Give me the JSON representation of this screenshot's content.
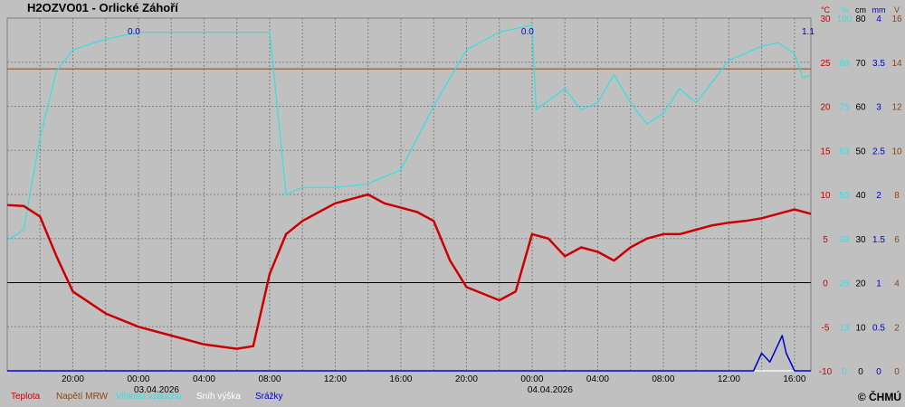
{
  "title": "H2OZVO01 - Orlické Záhoří",
  "copyright": "© ČHMÚ",
  "colors": {
    "background": "#c0c0c0",
    "temperature": "#cc0000",
    "voltage": "#8b4513",
    "humidity": "#33e0e0",
    "snow": "#ffffff",
    "precip": "#0000cc",
    "grid": "#808080",
    "zero": "#000000"
  },
  "legend": [
    {
      "label": "Teplota",
      "color": "#cc0000"
    },
    {
      "label": "Napětí MRW",
      "color": "#8b4513"
    },
    {
      "label": "Vlhkost vzduchu",
      "color": "#33e0e0"
    },
    {
      "label": "Sníh výška",
      "color": "#ffffff"
    },
    {
      "label": "Srážky",
      "color": "#0000cc"
    }
  ],
  "axes": {
    "units": [
      "°C",
      "%",
      "cm",
      "mm",
      "V"
    ],
    "temperature_ticks": [
      "30",
      "25",
      "20",
      "15",
      "10",
      "5",
      "0",
      "-5",
      "-10"
    ],
    "humidity_ticks": [
      "100",
      "88",
      "75",
      "63",
      "50",
      "38",
      "25",
      "13",
      "0"
    ],
    "snow_ticks": [
      "80",
      "70",
      "60",
      "50",
      "40",
      "30",
      "20",
      "10",
      "0"
    ],
    "precip_ticks": [
      "4",
      "3.5",
      "3",
      "2.5",
      "2",
      "1.5",
      "1",
      "0.5",
      "0"
    ],
    "voltage_ticks": [
      "16",
      "14",
      "12",
      "10",
      "8",
      "6",
      "4",
      "2",
      "0"
    ]
  },
  "x_ticks": [
    "20:00",
    "00:00",
    "04:00",
    "08:00",
    "12:00",
    "16:00",
    "20:00",
    "00:00",
    "04:00",
    "08:00",
    "12:00",
    "16:00"
  ],
  "date_labels": [
    "03.04.2026",
    "04.04.2026"
  ],
  "precip_totals": [
    "0.0",
    "0.0",
    "1.1"
  ],
  "chart_data": {
    "type": "line",
    "x_range": [
      "2026-04-02 16:00",
      "2026-04-04 17:00"
    ],
    "y_axes": {
      "temperature_c": [
        -10,
        30
      ],
      "humidity_pct": [
        0,
        100
      ],
      "snow_cm": [
        0,
        80
      ],
      "precip_mm": [
        0,
        4
      ],
      "voltage_v": [
        0,
        16
      ]
    },
    "grid": true,
    "series": [
      {
        "name": "Teplota",
        "unit": "°C",
        "color": "#cc0000",
        "x": [
          "2026-04-02 16:00",
          "2026-04-02 17:00",
          "2026-04-02 18:00",
          "2026-04-02 19:00",
          "2026-04-02 20:00",
          "2026-04-02 22:00",
          "2026-04-03 00:00",
          "2026-04-03 02:00",
          "2026-04-03 04:00",
          "2026-04-03 06:00",
          "2026-04-03 07:00",
          "2026-04-03 08:00",
          "2026-04-03 09:00",
          "2026-04-03 10:00",
          "2026-04-03 11:00",
          "2026-04-03 12:00",
          "2026-04-03 13:00",
          "2026-04-03 14:00",
          "2026-04-03 15:00",
          "2026-04-03 16:00",
          "2026-04-03 17:00",
          "2026-04-03 18:00",
          "2026-04-03 19:00",
          "2026-04-03 20:00",
          "2026-04-03 22:00",
          "2026-04-03 23:00",
          "2026-04-04 00:00",
          "2026-04-04 01:00",
          "2026-04-04 02:00",
          "2026-04-04 03:00",
          "2026-04-04 04:00",
          "2026-04-04 05:00",
          "2026-04-04 06:00",
          "2026-04-04 07:00",
          "2026-04-04 08:00",
          "2026-04-04 09:00",
          "2026-04-04 10:00",
          "2026-04-04 11:00",
          "2026-04-04 12:00",
          "2026-04-04 13:00",
          "2026-04-04 14:00",
          "2026-04-04 15:00",
          "2026-04-04 16:00",
          "2026-04-04 17:00"
        ],
        "y": [
          8.8,
          8.7,
          7.5,
          3.0,
          -1.0,
          -3.5,
          -5.0,
          -6.0,
          -7.0,
          -7.5,
          -7.2,
          1.0,
          5.5,
          7.0,
          8.0,
          9.0,
          9.5,
          10.0,
          9.0,
          8.5,
          8.0,
          7.0,
          2.5,
          -0.5,
          -2.0,
          -1.0,
          5.5,
          5.0,
          3.0,
          4.0,
          3.5,
          2.5,
          4.0,
          5.0,
          5.5,
          5.5,
          6.0,
          6.5,
          6.8,
          7.0,
          7.3,
          7.8,
          8.3,
          7.8
        ]
      },
      {
        "name": "Napětí MRW",
        "unit": "V",
        "color": "#8b4513",
        "x": [
          "2026-04-02 16:00",
          "2026-04-04 17:00"
        ],
        "y": [
          13.7,
          13.7
        ]
      },
      {
        "name": "Vlhkost vzduchu",
        "unit": "%",
        "color": "#33e0e0",
        "x": [
          "2026-04-02 16:00",
          "2026-04-02 17:00",
          "2026-04-02 18:00",
          "2026-04-02 19:00",
          "2026-04-02 20:00",
          "2026-04-02 22:00",
          "2026-04-03 00:00",
          "2026-04-03 04:00",
          "2026-04-03 08:00",
          "2026-04-03 09:00",
          "2026-04-03 10:00",
          "2026-04-03 12:00",
          "2026-04-03 14:00",
          "2026-04-03 16:00",
          "2026-04-03 18:00",
          "2026-04-03 20:00",
          "2026-04-03 22:00",
          "2026-04-04 00:00",
          "2026-04-04 00:15",
          "2026-04-04 02:00",
          "2026-04-04 03:00",
          "2026-04-04 04:00",
          "2026-04-04 05:00",
          "2026-04-04 06:00",
          "2026-04-04 07:00",
          "2026-04-04 08:00",
          "2026-04-04 09:00",
          "2026-04-04 10:00",
          "2026-04-04 11:00",
          "2026-04-04 12:00",
          "2026-04-04 14:00",
          "2026-04-04 15:00",
          "2026-04-04 16:00",
          "2026-04-04 16:30",
          "2026-04-04 17:00"
        ],
        "y": [
          37,
          40,
          66,
          85,
          91,
          94,
          96,
          96,
          96,
          50,
          52,
          52,
          53,
          57,
          75,
          91,
          96,
          98,
          74,
          80,
          74,
          76,
          84,
          76,
          70,
          73,
          80,
          76,
          82,
          88,
          92,
          93,
          90,
          83,
          84
        ]
      },
      {
        "name": "Sníh výška",
        "unit": "cm",
        "color": "#ffffff",
        "x": [
          "2026-04-02 16:00",
          "2026-04-04 17:00"
        ],
        "y": [
          0,
          0
        ]
      },
      {
        "name": "Srážky",
        "unit": "mm",
        "color": "#0000cc",
        "x": [
          "2026-04-02 16:00",
          "2026-04-04 13:30",
          "2026-04-04 14:00",
          "2026-04-04 14:30",
          "2026-04-04 15:00",
          "2026-04-04 15:15",
          "2026-04-04 15:30",
          "2026-04-04 16:00",
          "2026-04-04 17:00"
        ],
        "y": [
          0,
          0,
          0.2,
          0.1,
          0.3,
          0.4,
          0.2,
          0,
          0
        ]
      }
    ]
  }
}
